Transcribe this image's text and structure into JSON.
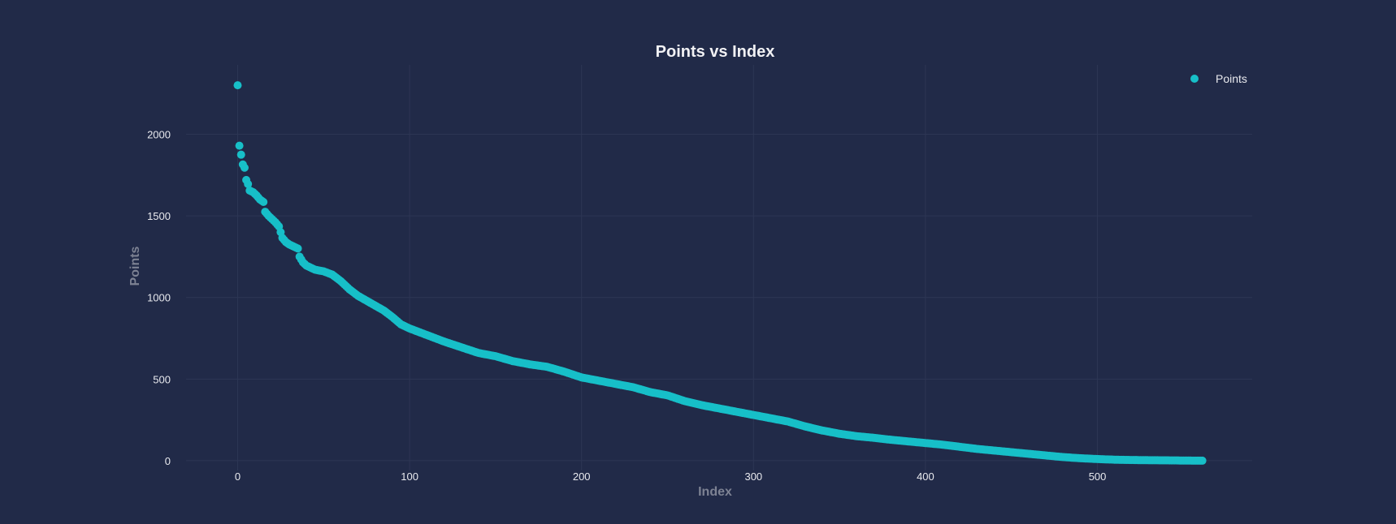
{
  "colors": {
    "background": "#212a48",
    "marker": "#17bfc8"
  },
  "chart_data": {
    "type": "scatter",
    "title": "Points vs Index",
    "xlabel": "Index",
    "ylabel": "Points",
    "xlim": [
      -30,
      590
    ],
    "ylim": [
      -60,
      2425
    ],
    "xticks": [
      0,
      100,
      200,
      300,
      400,
      500
    ],
    "yticks": [
      0,
      500,
      1000,
      1500,
      2000
    ],
    "grid": true,
    "legend": {
      "position": "top-right",
      "entries": [
        "Points"
      ]
    },
    "series": [
      {
        "name": "Points",
        "n_points": 562,
        "max_index": 561,
        "anchors": [
          [
            0,
            2300
          ],
          [
            1,
            1930
          ],
          [
            2,
            1875
          ],
          [
            3,
            1815
          ],
          [
            4,
            1795
          ],
          [
            5,
            1720
          ],
          [
            6,
            1695
          ],
          [
            7,
            1655
          ],
          [
            9,
            1645
          ],
          [
            11,
            1625
          ],
          [
            13,
            1600
          ],
          [
            15,
            1585
          ],
          [
            16,
            1525
          ],
          [
            18,
            1500
          ],
          [
            20,
            1480
          ],
          [
            22,
            1460
          ],
          [
            24,
            1435
          ],
          [
            25,
            1400
          ],
          [
            26,
            1365
          ],
          [
            28,
            1340
          ],
          [
            30,
            1325
          ],
          [
            35,
            1300
          ],
          [
            36,
            1250
          ],
          [
            38,
            1215
          ],
          [
            40,
            1195
          ],
          [
            45,
            1170
          ],
          [
            50,
            1160
          ],
          [
            55,
            1140
          ],
          [
            60,
            1100
          ],
          [
            65,
            1050
          ],
          [
            70,
            1010
          ],
          [
            75,
            980
          ],
          [
            80,
            950
          ],
          [
            85,
            920
          ],
          [
            90,
            880
          ],
          [
            95,
            835
          ],
          [
            100,
            810
          ],
          [
            110,
            770
          ],
          [
            120,
            730
          ],
          [
            130,
            695
          ],
          [
            140,
            660
          ],
          [
            150,
            640
          ],
          [
            160,
            610
          ],
          [
            170,
            590
          ],
          [
            180,
            575
          ],
          [
            190,
            545
          ],
          [
            200,
            510
          ],
          [
            210,
            490
          ],
          [
            220,
            470
          ],
          [
            230,
            450
          ],
          [
            240,
            420
          ],
          [
            250,
            400
          ],
          [
            260,
            365
          ],
          [
            270,
            340
          ],
          [
            280,
            320
          ],
          [
            290,
            300
          ],
          [
            300,
            280
          ],
          [
            310,
            260
          ],
          [
            320,
            240
          ],
          [
            330,
            210
          ],
          [
            340,
            185
          ],
          [
            350,
            165
          ],
          [
            360,
            150
          ],
          [
            370,
            140
          ],
          [
            380,
            128
          ],
          [
            390,
            118
          ],
          [
            400,
            108
          ],
          [
            410,
            98
          ],
          [
            420,
            85
          ],
          [
            430,
            72
          ],
          [
            440,
            62
          ],
          [
            450,
            52
          ],
          [
            460,
            42
          ],
          [
            470,
            32
          ],
          [
            480,
            22
          ],
          [
            490,
            15
          ],
          [
            500,
            10
          ],
          [
            510,
            6
          ],
          [
            520,
            4
          ],
          [
            530,
            3
          ],
          [
            540,
            2
          ],
          [
            550,
            1
          ],
          [
            561,
            0
          ]
        ]
      }
    ]
  }
}
